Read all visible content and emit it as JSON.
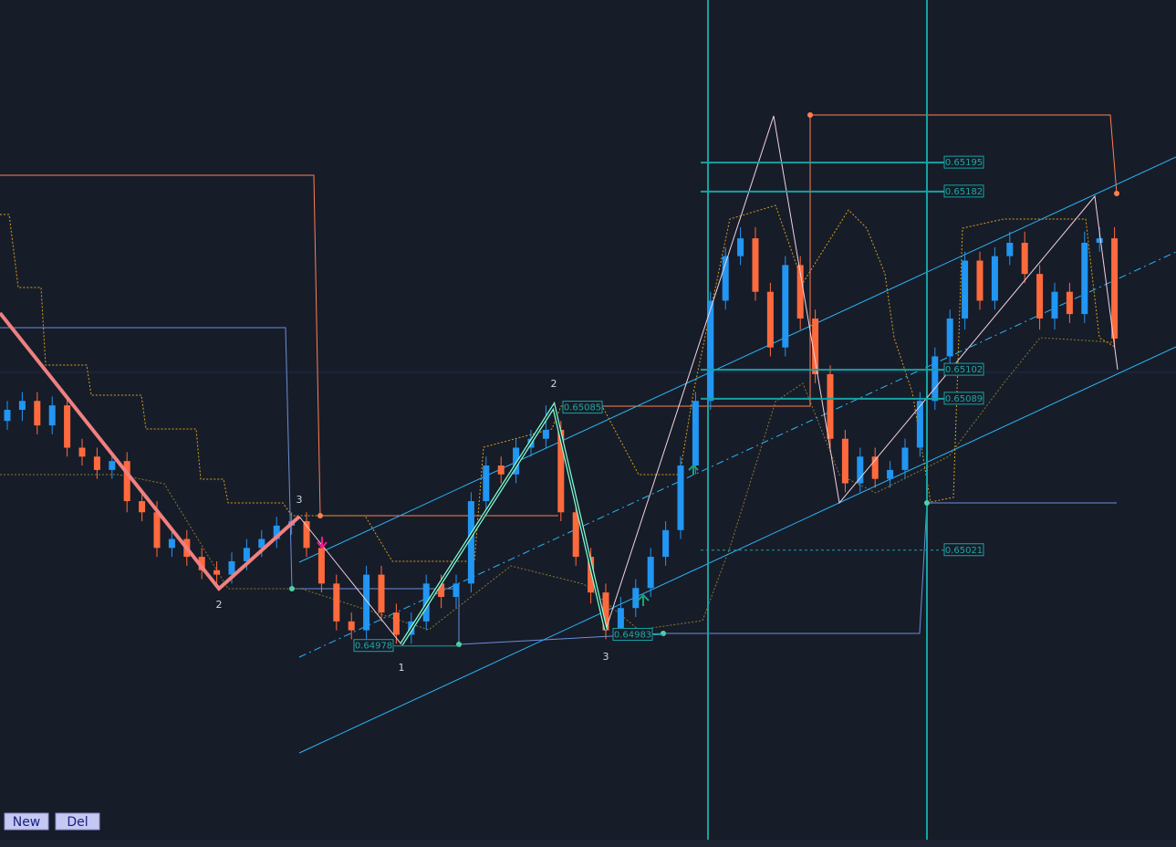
{
  "chart_data": {
    "type": "candlestick",
    "ylim": [
      0.64891,
      0.65268
    ],
    "up_color": "#2196f3",
    "down_color": "#ff6a3d",
    "candles": [
      [
        0.65079,
        0.65088,
        0.65075,
        0.65084
      ],
      [
        0.65084,
        0.65092,
        0.65079,
        0.65088
      ],
      [
        0.65088,
        0.65092,
        0.65073,
        0.65077
      ],
      [
        0.65077,
        0.6509,
        0.65073,
        0.65086
      ],
      [
        0.65086,
        0.6509,
        0.65063,
        0.65067
      ],
      [
        0.65067,
        0.65071,
        0.65059,
        0.65063
      ],
      [
        0.65063,
        0.65067,
        0.65053,
        0.65057
      ],
      [
        0.65057,
        0.65065,
        0.65053,
        0.65061
      ],
      [
        0.65061,
        0.65065,
        0.65038,
        0.65043
      ],
      [
        0.65043,
        0.65047,
        0.65034,
        0.65038
      ],
      [
        0.65038,
        0.65043,
        0.65018,
        0.65022
      ],
      [
        0.65022,
        0.6503,
        0.65018,
        0.65026
      ],
      [
        0.65026,
        0.6503,
        0.65014,
        0.65018
      ],
      [
        0.65018,
        0.65022,
        0.65008,
        0.65012
      ],
      [
        0.65012,
        0.65016,
        0.65006,
        0.6501
      ],
      [
        0.6501,
        0.6502,
        0.65006,
        0.65016
      ],
      [
        0.65016,
        0.65026,
        0.65012,
        0.65022
      ],
      [
        0.65022,
        0.6503,
        0.65018,
        0.65026
      ],
      [
        0.65026,
        0.65036,
        0.65022,
        0.65032
      ],
      [
        0.65032,
        0.65038,
        0.65028,
        0.65034
      ],
      [
        0.65034,
        0.65038,
        0.65018,
        0.65022
      ],
      [
        0.65022,
        0.65026,
        0.65002,
        0.65006
      ],
      [
        0.65006,
        0.6501,
        0.64985,
        0.64989
      ],
      [
        0.64989,
        0.64993,
        0.64981,
        0.64985
      ],
      [
        0.64985,
        0.65014,
        0.64981,
        0.6501
      ],
      [
        0.6501,
        0.65014,
        0.64989,
        0.64993
      ],
      [
        0.64993,
        0.64997,
        0.64979,
        0.64983
      ],
      [
        0.64983,
        0.64993,
        0.64979,
        0.64989
      ],
      [
        0.64989,
        0.6501,
        0.64985,
        0.65006
      ],
      [
        0.65006,
        0.6501,
        0.64995,
        0.65
      ],
      [
        0.65,
        0.6501,
        0.64995,
        0.65006
      ],
      [
        0.65006,
        0.65047,
        0.65002,
        0.65043
      ],
      [
        0.65043,
        0.65063,
        0.65038,
        0.65059
      ],
      [
        0.65059,
        0.65063,
        0.65051,
        0.65055
      ],
      [
        0.65055,
        0.65071,
        0.65051,
        0.65067
      ],
      [
        0.65067,
        0.65075,
        0.65063,
        0.65071
      ],
      [
        0.65071,
        0.65086,
        0.65067,
        0.65075
      ],
      [
        0.65075,
        0.65079,
        0.65034,
        0.65038
      ],
      [
        0.65038,
        0.65043,
        0.65014,
        0.65018
      ],
      [
        0.65018,
        0.65022,
        0.64997,
        0.65002
      ],
      [
        0.65002,
        0.65006,
        0.64981,
        0.64985
      ],
      [
        0.64985,
        0.65,
        0.64981,
        0.64995
      ],
      [
        0.64995,
        0.65008,
        0.64991,
        0.65004
      ],
      [
        0.65004,
        0.65022,
        0.65,
        0.65018
      ],
      [
        0.65018,
        0.65034,
        0.65014,
        0.6503
      ],
      [
        0.6503,
        0.65063,
        0.65026,
        0.65059
      ],
      [
        0.65059,
        0.65092,
        0.65055,
        0.65088
      ],
      [
        0.65088,
        0.65137,
        0.65084,
        0.65133
      ],
      [
        0.65133,
        0.65157,
        0.65129,
        0.65153
      ],
      [
        0.65153,
        0.65166,
        0.65149,
        0.65161
      ],
      [
        0.65161,
        0.65166,
        0.65133,
        0.65137
      ],
      [
        0.65137,
        0.65141,
        0.65108,
        0.65112
      ],
      [
        0.65112,
        0.65153,
        0.65108,
        0.65149
      ],
      [
        0.65149,
        0.65153,
        0.6512,
        0.65125
      ],
      [
        0.65125,
        0.65129,
        0.65096,
        0.651
      ],
      [
        0.651,
        0.65104,
        0.65067,
        0.65071
      ],
      [
        0.65071,
        0.65075,
        0.65047,
        0.65051
      ],
      [
        0.65051,
        0.65067,
        0.65047,
        0.65063
      ],
      [
        0.65063,
        0.65067,
        0.65049,
        0.65053
      ],
      [
        0.65053,
        0.65061,
        0.65049,
        0.65057
      ],
      [
        0.65057,
        0.65071,
        0.65053,
        0.65067
      ],
      [
        0.65067,
        0.65092,
        0.65063,
        0.65088
      ],
      [
        0.65088,
        0.65112,
        0.65084,
        0.65108
      ],
      [
        0.65108,
        0.65129,
        0.65104,
        0.65125
      ],
      [
        0.65125,
        0.65155,
        0.6512,
        0.65151
      ],
      [
        0.65151,
        0.65155,
        0.65129,
        0.65133
      ],
      [
        0.65133,
        0.65157,
        0.65129,
        0.65153
      ],
      [
        0.65153,
        0.65164,
        0.65149,
        0.65159
      ],
      [
        0.65159,
        0.65164,
        0.65141,
        0.65145
      ],
      [
        0.65145,
        0.65149,
        0.6512,
        0.65125
      ],
      [
        0.65125,
        0.65141,
        0.6512,
        0.65137
      ],
      [
        0.65137,
        0.65141,
        0.65123,
        0.65127
      ],
      [
        0.65127,
        0.65164,
        0.65123,
        0.65159
      ],
      [
        0.65159,
        0.65166,
        0.65155,
        0.65161
      ],
      [
        0.65161,
        0.65166,
        0.65112,
        0.65116
      ]
    ],
    "price_levels": [
      0.65195,
      0.65182,
      0.65102,
      0.65089,
      0.65021,
      0.64983,
      0.64978,
      0.65085
    ],
    "wave_labels": [
      "2",
      "3",
      "2",
      "1",
      "3"
    ]
  },
  "buttons": [
    "New",
    "Del"
  ]
}
